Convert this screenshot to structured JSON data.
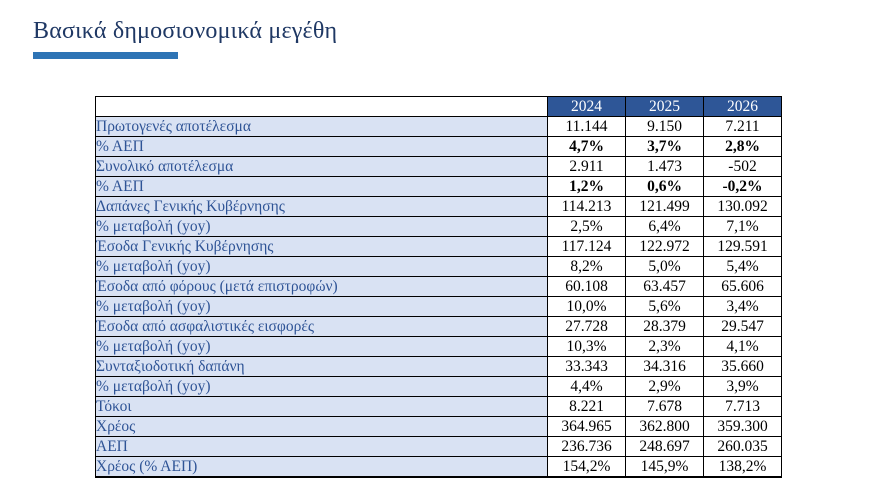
{
  "page": {
    "title": "Βασικά δημοσιονομικά μεγέθη"
  },
  "colors": {
    "title_color": "#1F3864",
    "accent_bar": "#2E74B5",
    "header_bg": "#2E5697",
    "header_text": "#FFFFFF",
    "label_bg": "#D9E2F3",
    "label_text": "#2F5496",
    "value_text": "#000000",
    "border": "#000000"
  },
  "table": {
    "years": [
      "2024",
      "2025",
      "2026"
    ],
    "rows": [
      {
        "label": "Πρωτογενές αποτέλεσμα",
        "values": [
          "11.144",
          "9.150",
          "7.211"
        ],
        "bold": false
      },
      {
        "label": "% ΑΕΠ",
        "values": [
          "4,7%",
          "3,7%",
          "2,8%"
        ],
        "bold": true
      },
      {
        "label": "Συνολικό αποτέλεσμα",
        "values": [
          "2.911",
          "1.473",
          "-502"
        ],
        "bold": false
      },
      {
        "label": "% ΑΕΠ",
        "values": [
          "1,2%",
          "0,6%",
          "-0,2%"
        ],
        "bold": true
      },
      {
        "label": "Δαπάνες Γενικής Κυβέρνησης",
        "values": [
          "114.213",
          "121.499",
          "130.092"
        ],
        "bold": false
      },
      {
        "label": "% μεταβολή (yoy)",
        "values": [
          "2,5%",
          "6,4%",
          "7,1%"
        ],
        "bold": false
      },
      {
        "label": "Έσοδα Γενικής Κυβέρνησης",
        "values": [
          "117.124",
          "122.972",
          "129.591"
        ],
        "bold": false
      },
      {
        "label": "% μεταβολή (yoy)",
        "values": [
          "8,2%",
          "5,0%",
          "5,4%"
        ],
        "bold": false
      },
      {
        "label": "Έσοδα από φόρους (μετά επιστροφών)",
        "values": [
          "60.108",
          "63.457",
          "65.606"
        ],
        "bold": false
      },
      {
        "label": "% μεταβολή (yoy)",
        "values": [
          "10,0%",
          "5,6%",
          "3,4%"
        ],
        "bold": false
      },
      {
        "label": "Έσοδα από ασφαλιστικές εισφορές",
        "values": [
          "27.728",
          "28.379",
          "29.547"
        ],
        "bold": false
      },
      {
        "label": "% μεταβολή (yoy)",
        "values": [
          "10,3%",
          "2,3%",
          "4,1%"
        ],
        "bold": false
      },
      {
        "label": "Συνταξιοδοτική δαπάνη",
        "values": [
          "33.343",
          "34.316",
          "35.660"
        ],
        "bold": false
      },
      {
        "label": "% μεταβολή (yoy)",
        "values": [
          "4,4%",
          "2,9%",
          "3,9%"
        ],
        "bold": false
      },
      {
        "label": "Τόκοι",
        "values": [
          "8.221",
          "7.678",
          "7.713"
        ],
        "bold": false
      },
      {
        "label": "Χρέος",
        "values": [
          "364.965",
          "362.800",
          "359.300"
        ],
        "bold": false
      },
      {
        "label": "ΑΕΠ",
        "values": [
          "236.736",
          "248.697",
          "260.035"
        ],
        "bold": false
      },
      {
        "label": "Χρέος (% ΑΕΠ)",
        "values": [
          "154,2%",
          "145,9%",
          "138,2%"
        ],
        "bold": false
      }
    ]
  }
}
